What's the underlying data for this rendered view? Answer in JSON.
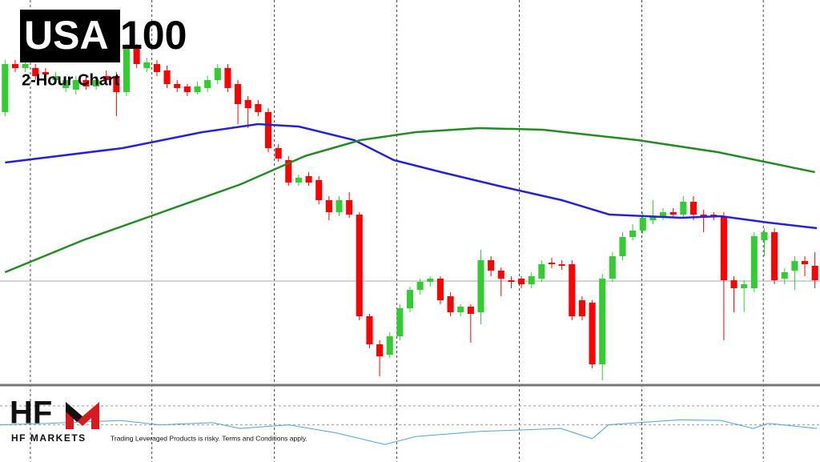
{
  "chart_data": {
    "type": "candlestick",
    "title_box": "USA",
    "title_rest": "100",
    "subtitle": "2-Hour Chart",
    "brand": "HF",
    "brand_name": "HF MARKETS",
    "disclaimer": "Trading Leveraged Products is risky. Terms and Conditions apply.",
    "up_color": "#33cc33",
    "down_color": "#ff0000",
    "xlim": [
      -0.5,
      80.5
    ],
    "ylim": [
      0,
      480
    ],
    "xgrid": [
      2.5,
      14.5,
      26.6,
      38.7,
      50.8,
      62.9,
      74.9
    ],
    "level_line": 129,
    "open": [
      340,
      400,
      395,
      395,
      390,
      380,
      370,
      368,
      380,
      372,
      385,
      385,
      365,
      420,
      395,
      400,
      392,
      375,
      372,
      365,
      370,
      380,
      395,
      375,
      355,
      350,
      340,
      295,
      280,
      252,
      260,
      255,
      230,
      215,
      230,
      212,
      85,
      50,
      37,
      60,
      95,
      118,
      128,
      132,
      110,
      90,
      97,
      90,
      155,
      142,
      130,
      132,
      125,
      132,
      152,
      150,
      150,
      105,
      102,
      25,
      132,
      160,
      184,
      192,
      205,
      208,
      215,
      212,
      228,
      212,
      212,
      210,
      130,
      120,
      120,
      180,
      190,
      132,
      142,
      154,
      148
    ],
    "high": [
      405,
      405,
      405,
      400,
      395,
      390,
      385,
      385,
      385,
      385,
      392,
      390,
      425,
      425,
      408,
      405,
      398,
      380,
      375,
      378,
      385,
      400,
      400,
      380,
      360,
      355,
      345,
      300,
      285,
      262,
      265,
      260,
      235,
      235,
      240,
      215,
      88,
      55,
      65,
      100,
      122,
      132,
      135,
      135,
      115,
      100,
      100,
      168,
      160,
      146,
      135,
      135,
      140,
      155,
      158,
      155,
      155,
      110,
      105,
      138,
      165,
      190,
      200,
      215,
      230,
      220,
      220,
      235,
      235,
      218,
      215,
      215,
      135,
      130,
      190,
      195,
      195,
      145,
      160,
      160,
      165
    ],
    "low": [
      335,
      390,
      390,
      380,
      382,
      375,
      365,
      362,
      368,
      368,
      375,
      335,
      360,
      395,
      390,
      385,
      370,
      365,
      360,
      362,
      365,
      375,
      365,
      325,
      320,
      335,
      290,
      278,
      248,
      248,
      248,
      225,
      205,
      210,
      208,
      80,
      45,
      10,
      33,
      55,
      90,
      112,
      122,
      100,
      85,
      85,
      52,
      75,
      135,
      110,
      120,
      120,
      120,
      128,
      145,
      143,
      80,
      80,
      20,
      5,
      128,
      155,
      180,
      188,
      200,
      205,
      208,
      208,
      205,
      190,
      205,
      55,
      90,
      90,
      115,
      160,
      125,
      125,
      118,
      135,
      120
    ],
    "close": [
      400,
      395,
      400,
      385,
      387,
      385,
      380,
      380,
      372,
      380,
      380,
      365,
      420,
      400,
      402,
      390,
      375,
      370,
      365,
      372,
      380,
      395,
      370,
      350,
      345,
      340,
      295,
      282,
      252,
      258,
      252,
      230,
      215,
      230,
      212,
      85,
      50,
      35,
      60,
      95,
      118,
      128,
      132,
      105,
      90,
      97,
      88,
      155,
      142,
      132,
      128,
      125,
      135,
      150,
      150,
      148,
      85,
      85,
      25,
      132,
      160,
      184,
      192,
      208,
      210,
      215,
      212,
      228,
      212,
      210,
      210,
      130,
      120,
      125,
      185,
      190,
      130,
      140,
      154,
      150,
      130
    ],
    "lines": [
      {
        "color": "#2222dd",
        "x": [
          0,
          11.6,
          19.5,
          25,
          29,
          34.5,
          38.4,
          43.1,
          48.7,
          55,
          59.7,
          66.8,
          70.7,
          75.4,
          80.2
        ],
        "values": [
          277,
          295,
          315,
          325,
          322,
          305,
          280,
          265,
          248,
          230,
          212,
          208,
          210,
          202,
          195
        ]
      },
      {
        "color": "#228b22",
        "x": [
          0,
          7.7,
          15.5,
          23.3,
          29.6,
          35.1,
          40.6,
          46.8,
          53.1,
          62.5,
          70.4,
          80
        ],
        "values": [
          140,
          180,
          215,
          250,
          285,
          305,
          315,
          320,
          318,
          305,
          290,
          265
        ]
      }
    ],
    "indicator": {
      "color": "#4aa3e8",
      "ylim": [
        0,
        100
      ],
      "levels": [
        77,
        51
      ],
      "x": [
        -0.5,
        4.2,
        11.4,
        15.3,
        20.5,
        23.2,
        28,
        32.7,
        37.5,
        40.6,
        47,
        54.9,
        58,
        59.6,
        66.7,
        70.7,
        73.9,
        75.4,
        80.2
      ],
      "values": [
        51,
        53,
        57,
        51,
        54,
        46,
        51,
        40,
        24,
        35,
        42,
        46,
        32,
        51,
        58,
        57,
        46,
        53,
        46
      ]
    }
  }
}
